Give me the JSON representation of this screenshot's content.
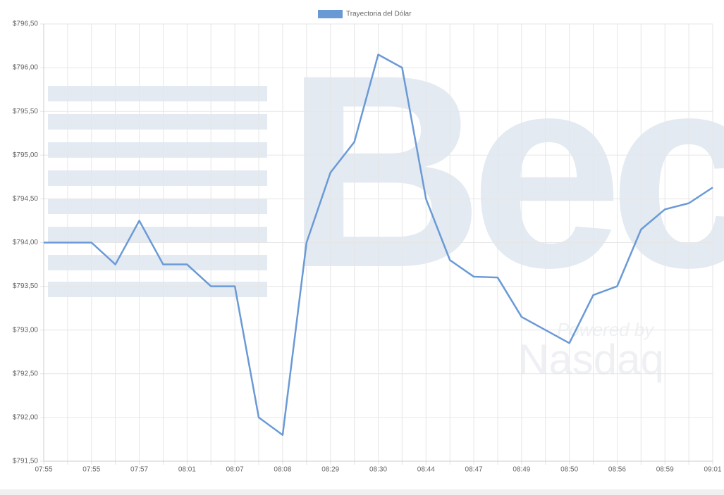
{
  "chart_data": {
    "type": "line",
    "legend_position": "top",
    "grid": true,
    "annotations": [
      "Bec",
      "Powered by",
      "Nasdaq"
    ],
    "categories": [
      "07:55",
      null,
      "07:55",
      null,
      "07:57",
      null,
      "08:01",
      null,
      "08:07",
      null,
      "08:08",
      null,
      "08:29",
      null,
      "08:30",
      null,
      "08:44",
      null,
      "08:47",
      null,
      "08:49",
      null,
      "08:50",
      null,
      "08:56",
      null,
      "08:59",
      null,
      "09:01"
    ],
    "series": [
      {
        "name": "Trayectoria del Dólar",
        "color": "#6a9ad6",
        "values": [
          794.0,
          794.0,
          794.0,
          793.75,
          794.25,
          793.75,
          793.75,
          793.5,
          793.5,
          792.0,
          791.8,
          794.0,
          794.8,
          795.15,
          796.15,
          796.0,
          794.5,
          793.8,
          793.61,
          793.6,
          793.15,
          793.0,
          792.85,
          793.4,
          793.5,
          794.15,
          794.38,
          794.45,
          794.63
        ]
      }
    ],
    "ylim": [
      791.5,
      796.5
    ],
    "yticks": [
      {
        "value": 791.5,
        "label": "$791,50"
      },
      {
        "value": 792,
        "label": "$792,00"
      },
      {
        "value": 792.5,
        "label": "$792,50"
      },
      {
        "value": 793,
        "label": "$793,00"
      },
      {
        "value": 793.5,
        "label": "$793,50"
      },
      {
        "value": 794,
        "label": "$794,00"
      },
      {
        "value": 794.5,
        "label": "$794,50"
      },
      {
        "value": 795,
        "label": "$795,00"
      },
      {
        "value": 795.5,
        "label": "$795,50"
      },
      {
        "value": 796,
        "label": "$796,00"
      },
      {
        "value": 796.5,
        "label": "$796,50"
      }
    ]
  }
}
